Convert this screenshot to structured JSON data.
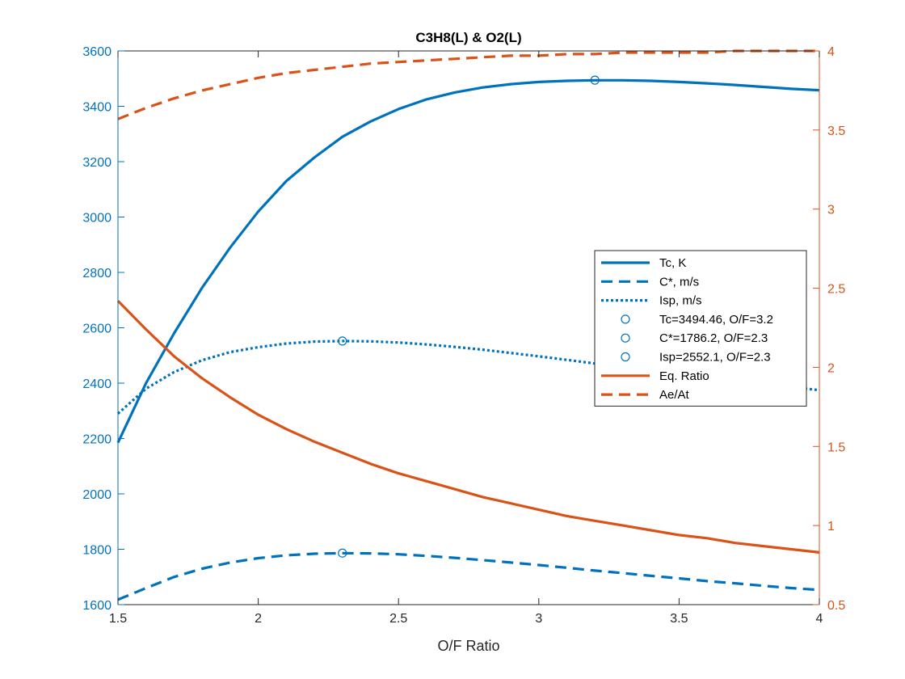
{
  "chart_data": {
    "type": "line",
    "title": "C3H8(L) & O2(L)",
    "xlabel": "O/F Ratio",
    "ylabel_left": "",
    "ylabel_right": "",
    "xlim": [
      1.5,
      4
    ],
    "ylim_left": [
      1600,
      3600
    ],
    "ylim_right": [
      0.5,
      4
    ],
    "x_ticks": [
      "1.5",
      "2",
      "2.5",
      "3",
      "3.5",
      "4"
    ],
    "y_left_ticks": [
      "1600",
      "1800",
      "2000",
      "2200",
      "2400",
      "2600",
      "2800",
      "3000",
      "3200",
      "3400",
      "3600"
    ],
    "y_right_ticks": [
      "0.5",
      "1",
      "1.5",
      "2",
      "2.5",
      "3",
      "3.5",
      "4"
    ],
    "grid": false,
    "legend_position": "right",
    "colors": {
      "blue": "#0072BD",
      "orange": "#D95319"
    },
    "x": [
      1.5,
      1.6,
      1.7,
      1.8,
      1.9,
      2.0,
      2.1,
      2.2,
      2.3,
      2.4,
      2.5,
      2.6,
      2.7,
      2.8,
      2.9,
      3.0,
      3.1,
      3.2,
      3.3,
      3.4,
      3.5,
      3.6,
      3.7,
      3.8,
      3.9,
      4.0
    ],
    "series": [
      {
        "name": "Tc, K",
        "axis": "left",
        "color": "#0072BD",
        "style": "solid",
        "values": [
          2185,
          2400,
          2580,
          2745,
          2890,
          3020,
          3130,
          3215,
          3290,
          3345,
          3390,
          3425,
          3450,
          3468,
          3480,
          3488,
          3492,
          3494,
          3494,
          3492,
          3488,
          3483,
          3477,
          3470,
          3463,
          3458
        ]
      },
      {
        "name": "C*, m/s",
        "axis": "left",
        "color": "#0072BD",
        "style": "dashed",
        "values": [
          1618,
          1660,
          1700,
          1730,
          1752,
          1768,
          1778,
          1784,
          1786,
          1785,
          1782,
          1776,
          1769,
          1761,
          1752,
          1743,
          1733,
          1723,
          1714,
          1704,
          1695,
          1685,
          1677,
          1668,
          1660,
          1653
        ]
      },
      {
        "name": "Isp, m/s",
        "axis": "left",
        "color": "#0072BD",
        "style": "dotted",
        "values": [
          2290,
          2380,
          2440,
          2483,
          2512,
          2530,
          2543,
          2550,
          2552,
          2551,
          2547,
          2540,
          2531,
          2521,
          2509,
          2497,
          2484,
          2471,
          2458,
          2446,
          2433,
          2420,
          2408,
          2396,
          2385,
          2375
        ]
      },
      {
        "name": "Eq. Ratio",
        "axis": "right",
        "color": "#D95319",
        "style": "solid",
        "values": [
          2.42,
          2.24,
          2.07,
          1.93,
          1.81,
          1.7,
          1.61,
          1.53,
          1.46,
          1.39,
          1.33,
          1.28,
          1.23,
          1.18,
          1.14,
          1.1,
          1.06,
          1.03,
          1.0,
          0.97,
          0.94,
          0.92,
          0.89,
          0.87,
          0.85,
          0.83
        ]
      },
      {
        "name": "Ae/At",
        "axis": "right",
        "color": "#D95319",
        "style": "dashed",
        "values": [
          3.57,
          3.64,
          3.7,
          3.75,
          3.79,
          3.83,
          3.86,
          3.88,
          3.9,
          3.92,
          3.93,
          3.94,
          3.95,
          3.96,
          3.97,
          3.97,
          3.98,
          3.98,
          3.99,
          3.99,
          3.99,
          3.99,
          4.0,
          4.0,
          4.0,
          4.0
        ]
      }
    ],
    "markers": [
      {
        "name": "Tc=3494.46, O/F=3.2",
        "x": 3.2,
        "y": 3494.46,
        "axis": "left",
        "color": "#0072BD"
      },
      {
        "name": "C*=1786.2, O/F=2.3",
        "x": 2.3,
        "y": 1786.2,
        "axis": "left",
        "color": "#0072BD"
      },
      {
        "name": "Isp=2552.1, O/F=2.3",
        "x": 2.3,
        "y": 2552.1,
        "axis": "left",
        "color": "#0072BD"
      }
    ],
    "legend_entries": [
      {
        "label": "Tc, K",
        "kind": "line",
        "style": "solid",
        "color": "#0072BD"
      },
      {
        "label": "C*, m/s",
        "kind": "line",
        "style": "dashed",
        "color": "#0072BD"
      },
      {
        "label": "Isp, m/s",
        "kind": "line",
        "style": "dotted",
        "color": "#0072BD"
      },
      {
        "label": "Tc=3494.46, O/F=3.2",
        "kind": "marker",
        "color": "#0072BD"
      },
      {
        "label": "C*=1786.2, O/F=2.3",
        "kind": "marker",
        "color": "#0072BD"
      },
      {
        "label": "Isp=2552.1, O/F=2.3",
        "kind": "marker",
        "color": "#0072BD"
      },
      {
        "label": "Eq. Ratio",
        "kind": "line",
        "style": "solid",
        "color": "#D95319"
      },
      {
        "label": "Ae/At",
        "kind": "line",
        "style": "dashed",
        "color": "#D95319"
      }
    ]
  }
}
